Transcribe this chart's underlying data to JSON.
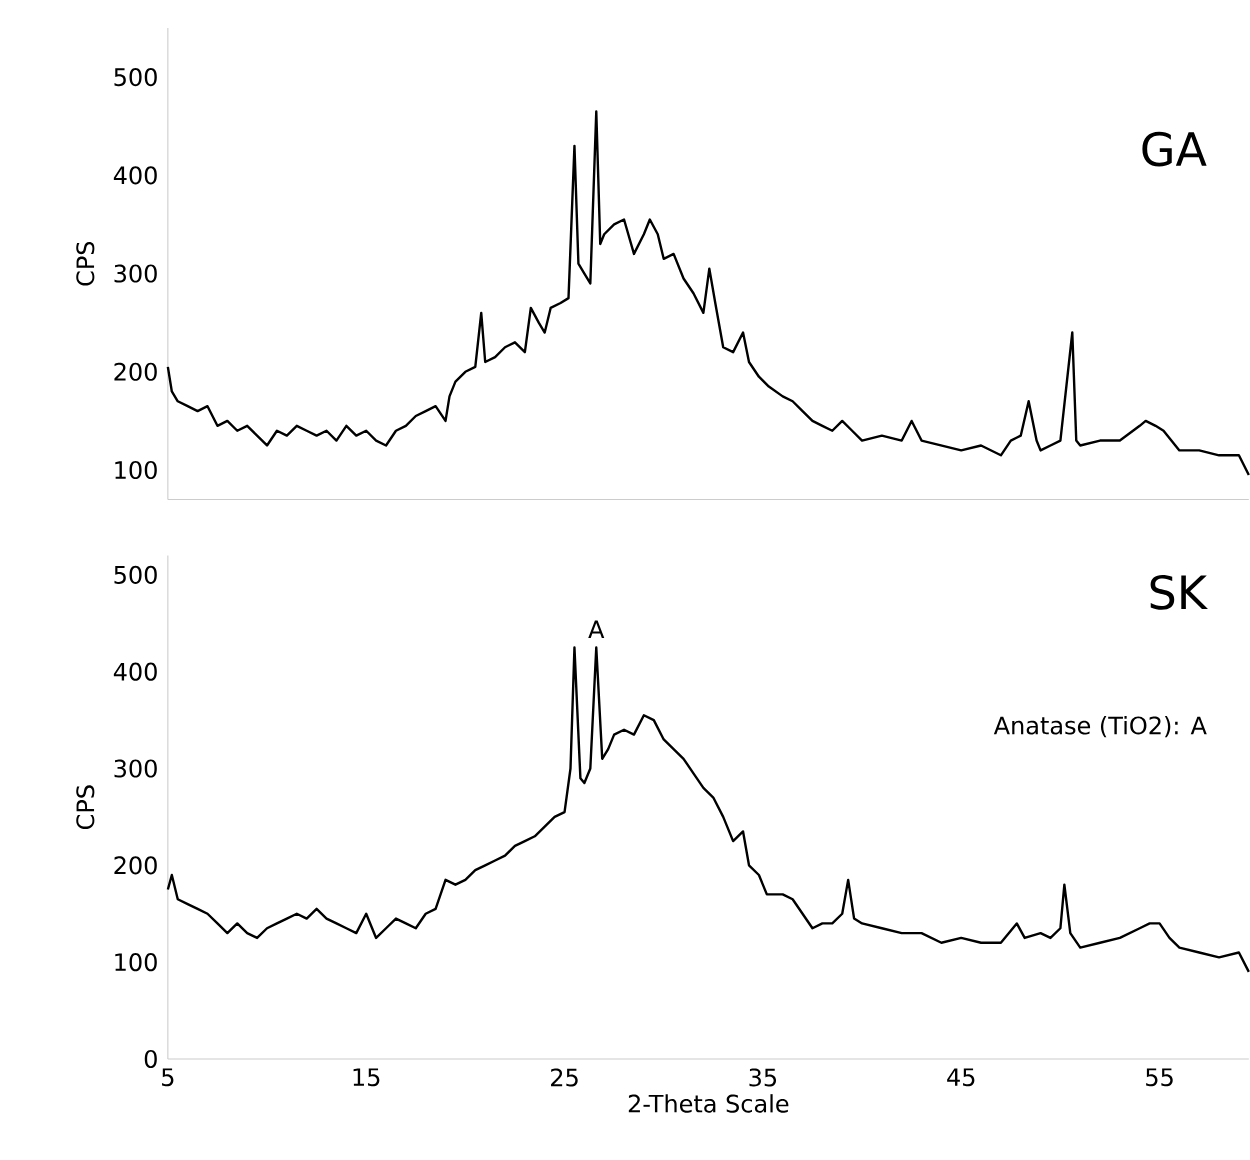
{
  "chart_data": [
    {
      "type": "line",
      "ylabel": "CPS",
      "xlim": [
        5,
        59.5
      ],
      "ylim": [
        70,
        550
      ],
      "yticks": [
        100,
        200,
        300,
        400,
        500
      ],
      "tick_labels": "y",
      "series": [
        {
          "name": "GA",
          "color": "#000000",
          "x": [
            5,
            5.2,
            5.5,
            6,
            6.5,
            7,
            7.5,
            8,
            8.5,
            9,
            9.5,
            10,
            10.5,
            11,
            11.5,
            12,
            12.5,
            13,
            13.5,
            14,
            14.5,
            15,
            15.5,
            16,
            16.5,
            17,
            17.5,
            18,
            18.5,
            19,
            19.2,
            19.5,
            20,
            20.5,
            20.8,
            21,
            21.5,
            22,
            22.5,
            23,
            23.3,
            23.7,
            24,
            24.3,
            24.8,
            25.2,
            25.5,
            25.7,
            26,
            26.3,
            26.6,
            26.8,
            27,
            27.5,
            28,
            28.5,
            29,
            29.3,
            29.7,
            30,
            30.5,
            31,
            31.5,
            32,
            32.3,
            32.6,
            33,
            33.5,
            34,
            34.3,
            34.8,
            35.3,
            36,
            36.5,
            37,
            37.5,
            38,
            38.5,
            39,
            39.5,
            40,
            41,
            42,
            42.5,
            43,
            44,
            45,
            46,
            47,
            47.5,
            48,
            48.4,
            48.8,
            49,
            49.5,
            50,
            50.6,
            50.8,
            51,
            52,
            53,
            54,
            54.3,
            54.8,
            55.2,
            56,
            57,
            58,
            59,
            59.5
          ],
          "values": [
            205,
            180,
            170,
            165,
            160,
            165,
            145,
            150,
            140,
            145,
            135,
            125,
            140,
            135,
            145,
            140,
            135,
            140,
            130,
            145,
            135,
            140,
            130,
            125,
            140,
            145,
            155,
            160,
            165,
            150,
            175,
            190,
            200,
            205,
            260,
            210,
            215,
            225,
            230,
            220,
            265,
            250,
            240,
            265,
            270,
            275,
            430,
            310,
            300,
            290,
            465,
            330,
            340,
            350,
            355,
            320,
            340,
            355,
            340,
            315,
            320,
            295,
            280,
            260,
            305,
            270,
            225,
            220,
            240,
            210,
            195,
            185,
            175,
            170,
            160,
            150,
            145,
            140,
            150,
            140,
            130,
            135,
            130,
            150,
            130,
            125,
            120,
            125,
            115,
            130,
            135,
            170,
            130,
            120,
            125,
            130,
            240,
            130,
            125,
            130,
            130,
            145,
            150,
            145,
            140,
            120,
            120,
            115,
            115,
            95
          ]
        }
      ]
    },
    {
      "type": "line",
      "xlabel": "2-Theta Scale",
      "ylabel": "CPS",
      "xlim": [
        5,
        59.5
      ],
      "ylim": [
        0,
        520
      ],
      "xticks": [
        5,
        15,
        25,
        35,
        45,
        55
      ],
      "yticks": [
        0,
        100,
        200,
        300,
        400,
        500
      ],
      "annotations": [
        {
          "text": "A",
          "x": 26.6,
          "y": 425
        },
        "Anatase (TiO2): A"
      ],
      "series": [
        {
          "name": "SK",
          "color": "#000000",
          "x": [
            5,
            5.2,
            5.5,
            6,
            6.5,
            7,
            7.5,
            8,
            8.5,
            9,
            9.5,
            10,
            10.5,
            11,
            11.5,
            12,
            12.5,
            13,
            13.5,
            14,
            14.5,
            15,
            15.5,
            16,
            16.5,
            17,
            17.5,
            18,
            18.5,
            19,
            19.5,
            20,
            20.5,
            21,
            21.5,
            22,
            22.5,
            23,
            23.5,
            24,
            24.5,
            25,
            25.3,
            25.5,
            25.8,
            26,
            26.3,
            26.6,
            26.9,
            27.2,
            27.5,
            28,
            28.5,
            29,
            29.5,
            30,
            30.5,
            31,
            31.5,
            32,
            32.5,
            33,
            33.5,
            34,
            34.3,
            34.8,
            35.2,
            36,
            36.5,
            37,
            37.5,
            38,
            38.5,
            39,
            39.3,
            39.6,
            40,
            41,
            42,
            43,
            44,
            45,
            46,
            47,
            47.8,
            48.2,
            49,
            49.5,
            50,
            50.2,
            50.5,
            51,
            52,
            53,
            54,
            54.5,
            55,
            55.5,
            56,
            57,
            58,
            59,
            59.5
          ],
          "values": [
            175,
            190,
            165,
            160,
            155,
            150,
            140,
            130,
            140,
            130,
            125,
            135,
            140,
            145,
            150,
            145,
            155,
            145,
            140,
            135,
            130,
            150,
            125,
            135,
            145,
            140,
            135,
            150,
            155,
            185,
            180,
            185,
            195,
            200,
            205,
            210,
            220,
            225,
            230,
            240,
            250,
            255,
            300,
            425,
            290,
            285,
            300,
            425,
            310,
            320,
            335,
            340,
            335,
            355,
            350,
            330,
            320,
            310,
            295,
            280,
            270,
            250,
            225,
            235,
            200,
            190,
            170,
            170,
            165,
            150,
            135,
            140,
            140,
            150,
            185,
            145,
            140,
            135,
            130,
            130,
            120,
            125,
            120,
            120,
            140,
            125,
            130,
            125,
            135,
            180,
            130,
            115,
            120,
            125,
            135,
            140,
            140,
            125,
            115,
            110,
            105,
            110,
            90
          ]
        }
      ]
    }
  ]
}
